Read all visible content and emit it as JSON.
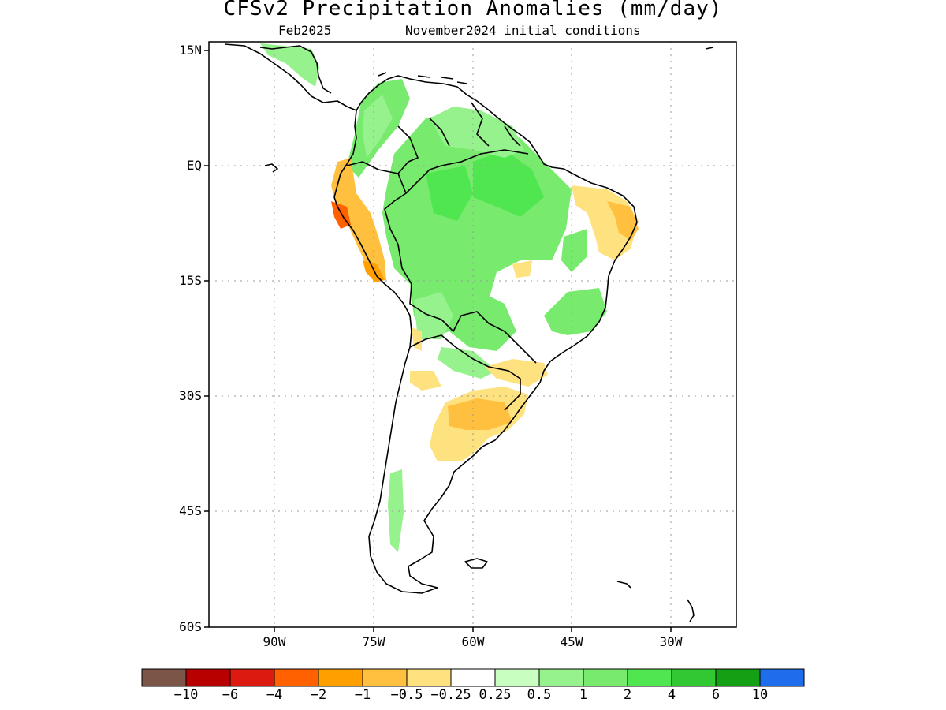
{
  "title": "CFSv2 Precipitation Anomalies (mm/day)",
  "subtitle_left": "Feb2025",
  "subtitle_right": "November2024 initial conditions",
  "lat_labels": [
    "15N",
    "EQ",
    "15S",
    "30S",
    "45S",
    "60S"
  ],
  "lon_labels": [
    "90W",
    "75W",
    "60W",
    "45W",
    "30W"
  ],
  "colorbar": {
    "colors": [
      "#7b5547",
      "#b80000",
      "#dc1a10",
      "#ff6000",
      "#ffa000",
      "#ffc040",
      "#ffe280",
      "#ffffff",
      "#c8ffc0",
      "#96f28c",
      "#78ea6e",
      "#50e650",
      "#32c832",
      "#14a014",
      "#1e6eeb"
    ],
    "labels": [
      "-10",
      "-6",
      "-4",
      "-2",
      "-1",
      "-0.5",
      "-0.25",
      "0.25",
      "0.5",
      "1",
      "2",
      "4",
      "6",
      "10"
    ]
  },
  "anomaly_colors": {
    "green_light": "#c8ffc0",
    "green_mid": "#96f28c",
    "green": "#78ea6e",
    "green_strong": "#50e650",
    "yellow": "#ffe280",
    "orange_light": "#ffc040",
    "orange": "#ffa000",
    "orange_dark": "#ff6000"
  }
}
